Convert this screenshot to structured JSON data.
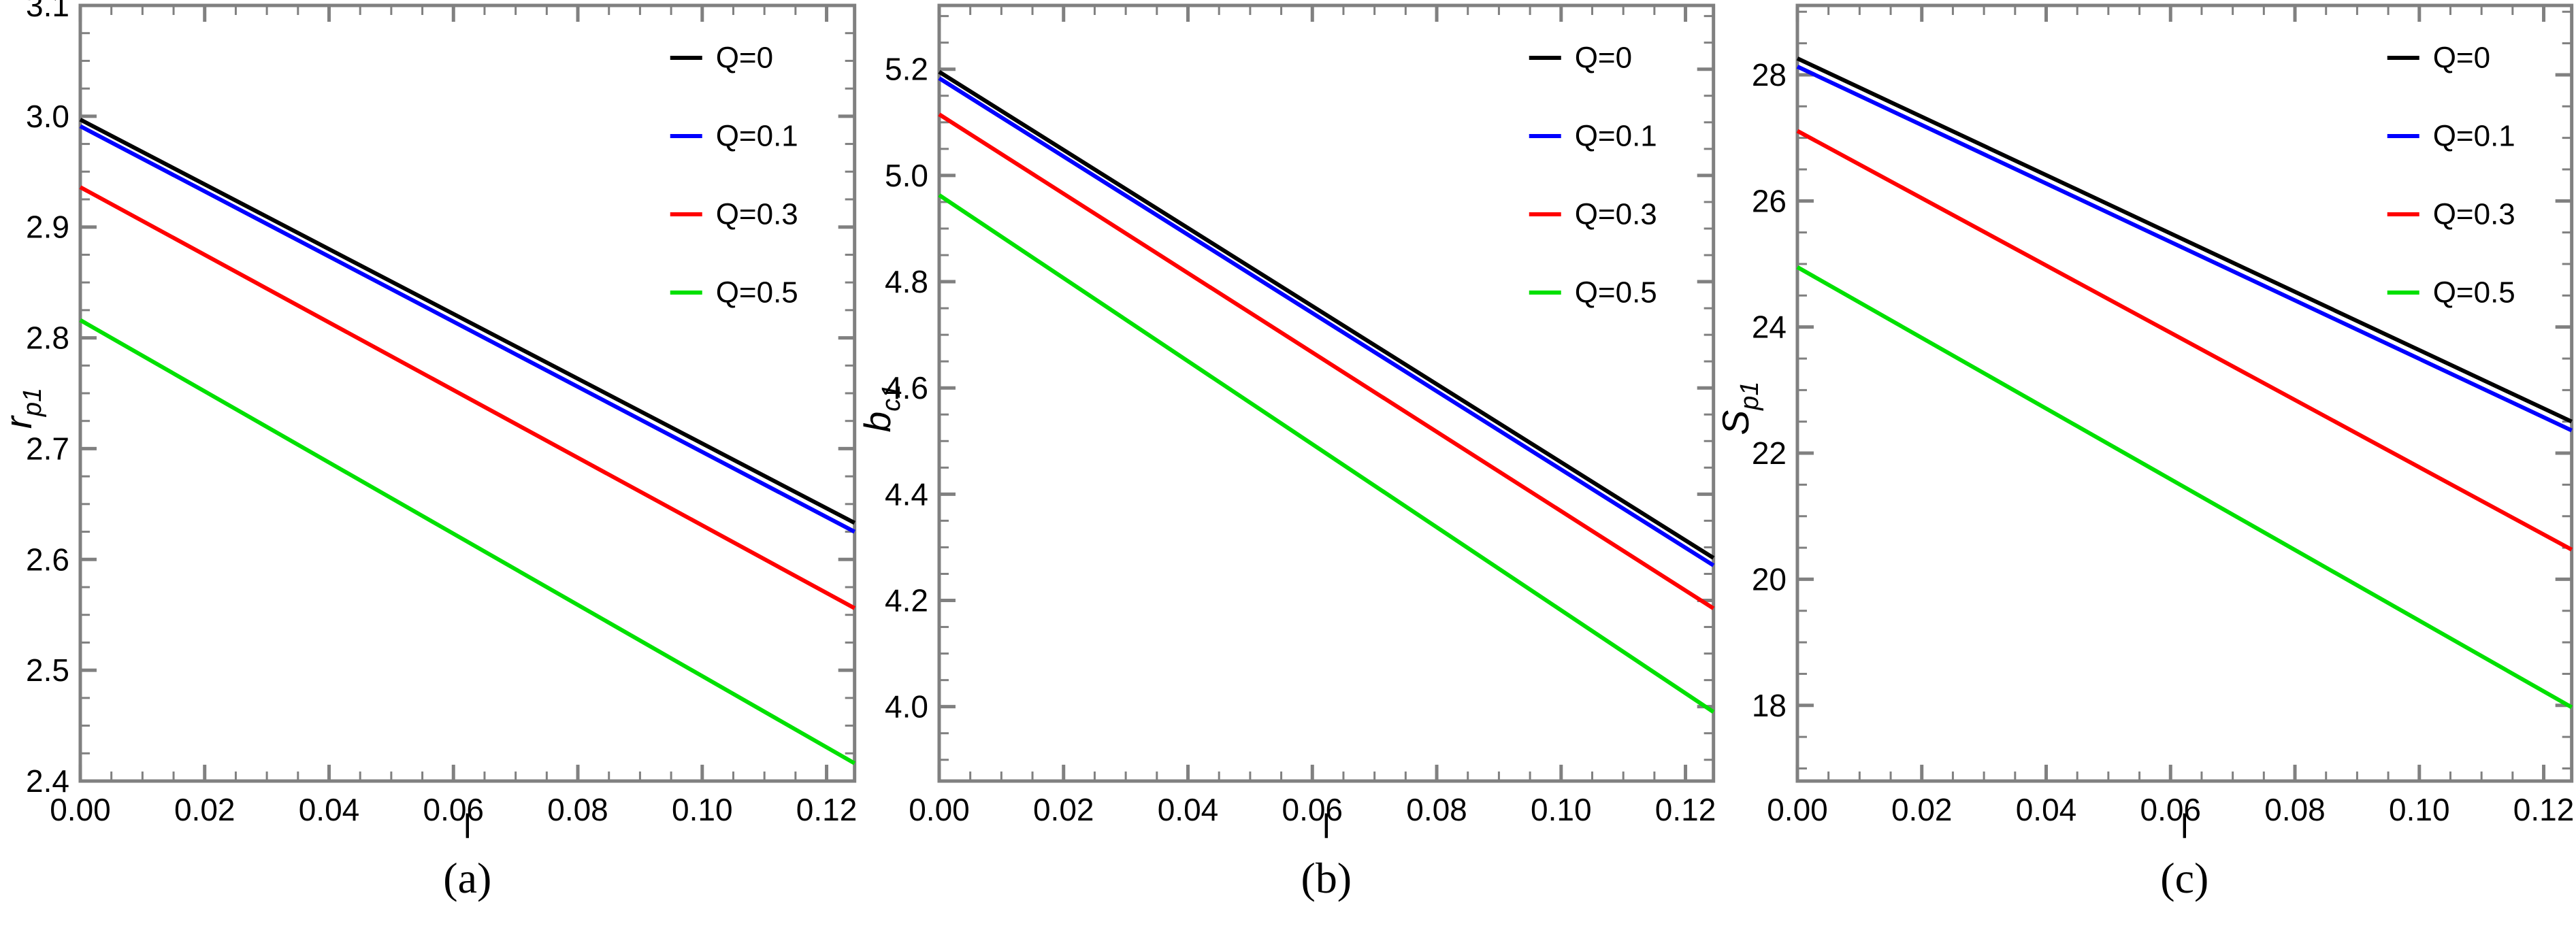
{
  "figure": {
    "background": "#ffffff",
    "frame_color": "#808080",
    "text_color": "#000000",
    "line_width": 6
  },
  "chart_data": [
    {
      "type": "line",
      "caption": "(a)",
      "xlabel": "l",
      "ylabel": {
        "base": "r",
        "sub": "p1"
      },
      "xlim": [
        0,
        0.1245
      ],
      "ylim": [
        2.4,
        3.1
      ],
      "grid": false,
      "legend_position": "top-right-inside",
      "xticks": {
        "values": [
          0,
          0.02,
          0.04,
          0.06,
          0.08,
          0.1,
          0.12
        ],
        "labels": [
          "0.00",
          "0.02",
          "0.04",
          "0.06",
          "0.08",
          "0.10",
          "0.12"
        ],
        "minor_step": 0.005
      },
      "yticks": {
        "values": [
          2.4,
          2.5,
          2.6,
          2.7,
          2.8,
          2.9,
          3.0,
          3.1
        ],
        "labels": [
          "2.4",
          "2.5",
          "2.6",
          "2.7",
          "2.8",
          "2.9",
          "3.0",
          "3.1"
        ],
        "minor_step": 0.025
      },
      "legend": [
        {
          "label": "Q=0",
          "color": "#000000"
        },
        {
          "label": "Q=0.1",
          "color": "#0000FF"
        },
        {
          "label": "Q=0.3",
          "color": "#FF0000"
        },
        {
          "label": "Q=0.5",
          "color": "#00E000"
        }
      ],
      "series": [
        {
          "name": "Q=0",
          "color": "#000000",
          "x": [
            0,
            0.1245
          ],
          "y": [
            2.997,
            2.633
          ]
        },
        {
          "name": "Q=0.1",
          "color": "#0000FF",
          "x": [
            0,
            0.1245
          ],
          "y": [
            2.991,
            2.625
          ]
        },
        {
          "name": "Q=0.3",
          "color": "#FF0000",
          "x": [
            0,
            0.1245
          ],
          "y": [
            2.936,
            2.556
          ]
        },
        {
          "name": "Q=0.5",
          "color": "#00E000",
          "x": [
            0,
            0.1245
          ],
          "y": [
            2.816,
            2.416
          ]
        }
      ]
    },
    {
      "type": "line",
      "caption": "(b)",
      "xlabel": "l",
      "ylabel": {
        "base": "b",
        "sub": "c1"
      },
      "xlim": [
        0,
        0.1245
      ],
      "ylim": [
        3.86,
        5.32
      ],
      "grid": false,
      "legend_position": "top-right-inside",
      "xticks": {
        "values": [
          0,
          0.02,
          0.04,
          0.06,
          0.08,
          0.1,
          0.12
        ],
        "labels": [
          "0.00",
          "0.02",
          "0.04",
          "0.06",
          "0.08",
          "0.10",
          "0.12"
        ],
        "minor_step": 0.005
      },
      "yticks": {
        "values": [
          4.0,
          4.2,
          4.4,
          4.6,
          4.8,
          5.0,
          5.2
        ],
        "labels": [
          "4.0",
          "4.2",
          "4.4",
          "4.6",
          "4.8",
          "5.0",
          "5.2"
        ],
        "minor_step": 0.05
      },
      "legend": [
        {
          "label": "Q=0",
          "color": "#000000"
        },
        {
          "label": "Q=0.1",
          "color": "#0000FF"
        },
        {
          "label": "Q=0.3",
          "color": "#FF0000"
        },
        {
          "label": "Q=0.5",
          "color": "#00E000"
        }
      ],
      "series": [
        {
          "name": "Q=0",
          "color": "#000000",
          "x": [
            0,
            0.1245
          ],
          "y": [
            5.195,
            4.28
          ]
        },
        {
          "name": "Q=0.1",
          "color": "#0000FF",
          "x": [
            0,
            0.1245
          ],
          "y": [
            5.183,
            4.266
          ]
        },
        {
          "name": "Q=0.3",
          "color": "#FF0000",
          "x": [
            0,
            0.1245
          ],
          "y": [
            5.115,
            4.185
          ]
        },
        {
          "name": "Q=0.5",
          "color": "#00E000",
          "x": [
            0,
            0.1245
          ],
          "y": [
            4.963,
            3.99
          ]
        }
      ]
    },
    {
      "type": "line",
      "caption": "(c)",
      "xlabel": "l",
      "ylabel": {
        "base": "S",
        "sub": "p1"
      },
      "xlim": [
        0,
        0.1245
      ],
      "ylim": [
        16.8,
        29.1
      ],
      "grid": false,
      "legend_position": "top-right-inside",
      "xticks": {
        "values": [
          0,
          0.02,
          0.04,
          0.06,
          0.08,
          0.1,
          0.12
        ],
        "labels": [
          "0.00",
          "0.02",
          "0.04",
          "0.06",
          "0.08",
          "0.10",
          "0.12"
        ],
        "minor_step": 0.005
      },
      "yticks": {
        "values": [
          18,
          20,
          22,
          24,
          26,
          28
        ],
        "labels": [
          "18",
          "20",
          "22",
          "24",
          "26",
          "28"
        ],
        "minor_step": 0.5
      },
      "legend": [
        {
          "label": "Q=0",
          "color": "#000000"
        },
        {
          "label": "Q=0.1",
          "color": "#0000FF"
        },
        {
          "label": "Q=0.3",
          "color": "#FF0000"
        },
        {
          "label": "Q=0.5",
          "color": "#00E000"
        }
      ],
      "series": [
        {
          "name": "Q=0",
          "color": "#000000",
          "x": [
            0,
            0.1245
          ],
          "y": [
            28.26,
            22.5
          ]
        },
        {
          "name": "Q=0.1",
          "color": "#0000FF",
          "x": [
            0,
            0.1245
          ],
          "y": [
            28.13,
            22.36
          ]
        },
        {
          "name": "Q=0.3",
          "color": "#FF0000",
          "x": [
            0,
            0.1245
          ],
          "y": [
            27.11,
            20.47
          ]
        },
        {
          "name": "Q=0.5",
          "color": "#00E000",
          "x": [
            0,
            0.1245
          ],
          "y": [
            24.95,
            17.97
          ]
        }
      ]
    }
  ]
}
